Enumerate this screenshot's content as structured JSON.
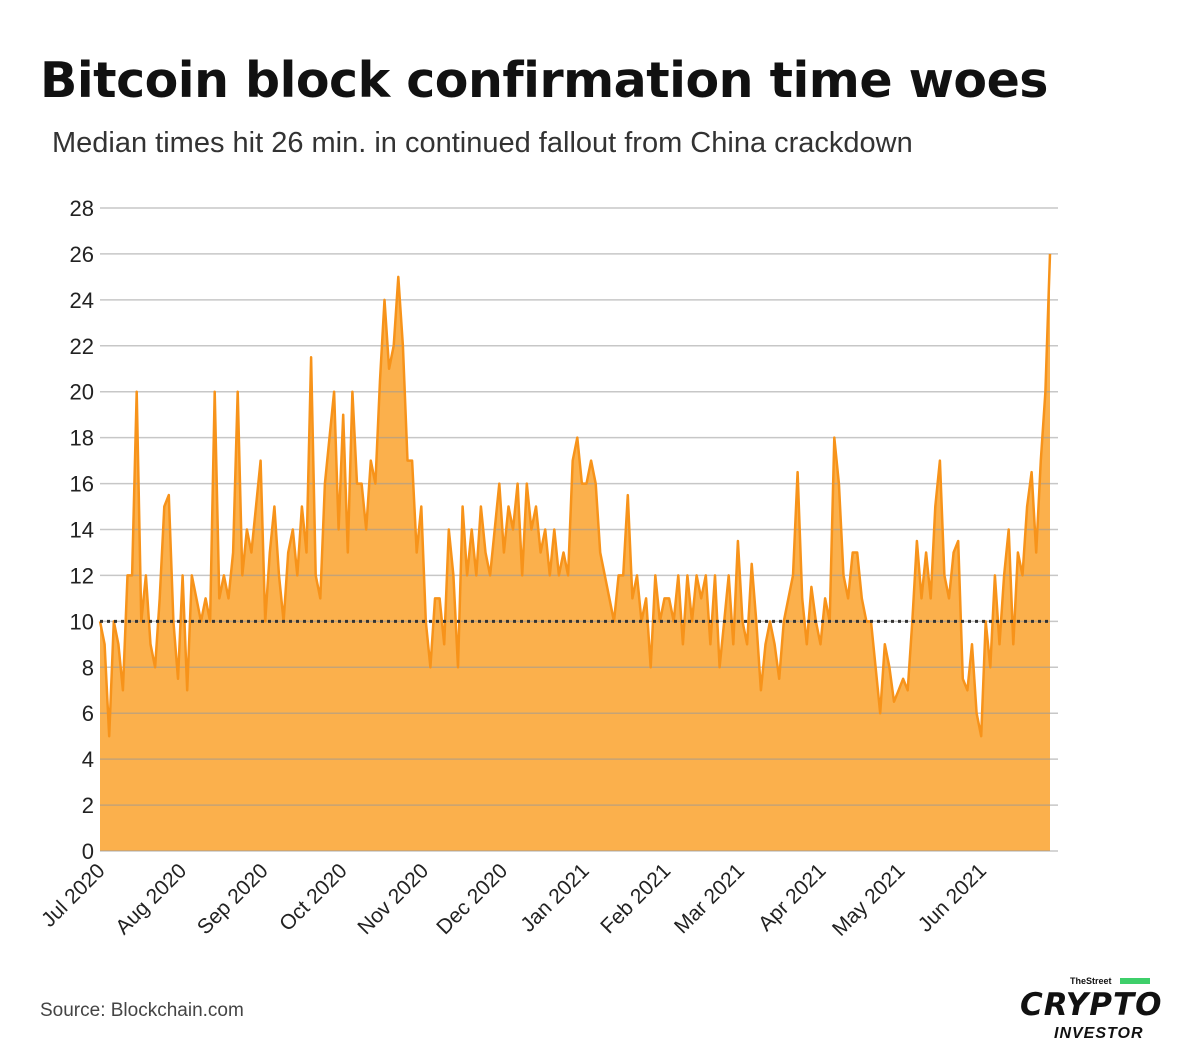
{
  "chart_data": {
    "type": "area",
    "title": "Bitcoin block confirmation time woes",
    "subtitle": "Median times hit 26 min. in continued fallout from China crackdown",
    "xlabel": "",
    "ylabel": "",
    "x_start": "2020-07-01",
    "x_end": "2021-06-27",
    "x_days_total": 361,
    "ylim": [
      0,
      28
    ],
    "yticks": [
      "0",
      "2",
      "4",
      "6",
      "8",
      "10",
      "12",
      "14",
      "16",
      "18",
      "20",
      "22",
      "24",
      "26",
      "28"
    ],
    "xticks": [
      {
        "label": "Jul 2020",
        "day": 0
      },
      {
        "label": "Aug 2020",
        "day": 31
      },
      {
        "label": "Sep 2020",
        "day": 62
      },
      {
        "label": "Oct 2020",
        "day": 92
      },
      {
        "label": "Nov 2020",
        "day": 123
      },
      {
        "label": "Dec 2020",
        "day": 153
      },
      {
        "label": "Jan 2021",
        "day": 184
      },
      {
        "label": "Feb 2021",
        "day": 215
      },
      {
        "label": "Mar 2021",
        "day": 243
      },
      {
        "label": "Apr 2021",
        "day": 274
      },
      {
        "label": "May 2021",
        "day": 304
      },
      {
        "label": "Jun 2021",
        "day": 335
      }
    ],
    "grid": true,
    "reference_line": {
      "value": 10,
      "style": "dotted"
    },
    "series": [
      {
        "name": "Median confirmation time (min)",
        "color": "#f7931a",
        "fill": "#fbb04c",
        "values": [
          10,
          9,
          5,
          10,
          9,
          7,
          12,
          12,
          20,
          10,
          12,
          9,
          8,
          11,
          15,
          15.5,
          10,
          7.5,
          12,
          7,
          12,
          11,
          10,
          11,
          10,
          20,
          11,
          12,
          11,
          13,
          20,
          12,
          14,
          13,
          15,
          17,
          10,
          13,
          15,
          12,
          10,
          13,
          14,
          12,
          15,
          13,
          21.5,
          12,
          11,
          16,
          18,
          20,
          14,
          19,
          13,
          20,
          16,
          16,
          14,
          17,
          16,
          20.5,
          24,
          21,
          22,
          25,
          22,
          17,
          17,
          13,
          15,
          10,
          8,
          11,
          11,
          9,
          14,
          12,
          8,
          15,
          12,
          14,
          12,
          15,
          13,
          12,
          14,
          16,
          13,
          15,
          14,
          16,
          12,
          16,
          14,
          15,
          13,
          14,
          12,
          14,
          12,
          13,
          12,
          17,
          18,
          16,
          16,
          17,
          16,
          13,
          12,
          11,
          10,
          12,
          12,
          15.5,
          11,
          12,
          10,
          11,
          8,
          12,
          10,
          11,
          11,
          10,
          12,
          9,
          12,
          10,
          12,
          11,
          12,
          9,
          12,
          8,
          10,
          12,
          9,
          13.5,
          10,
          9,
          12.5,
          10,
          7,
          9,
          10,
          9,
          7.5,
          10,
          11,
          12,
          16.5,
          11,
          9,
          11.5,
          10,
          9,
          11,
          10,
          18,
          16,
          12,
          11,
          13,
          13,
          11,
          10,
          10,
          8,
          6,
          9,
          8,
          6.5,
          7,
          7.5,
          7,
          10,
          13.5,
          11,
          13,
          11,
          15,
          17,
          12,
          11,
          13,
          13.5,
          7.5,
          7,
          9,
          6,
          5,
          10,
          8,
          12,
          9,
          12,
          14,
          9,
          13,
          12,
          15,
          16.5,
          13,
          17,
          20,
          26
        ]
      }
    ],
    "source": "Source: Blockchain.com"
  },
  "logo": {
    "publisher": "TheStreet",
    "name": "CRYPTO",
    "sub": "INVESTOR"
  }
}
